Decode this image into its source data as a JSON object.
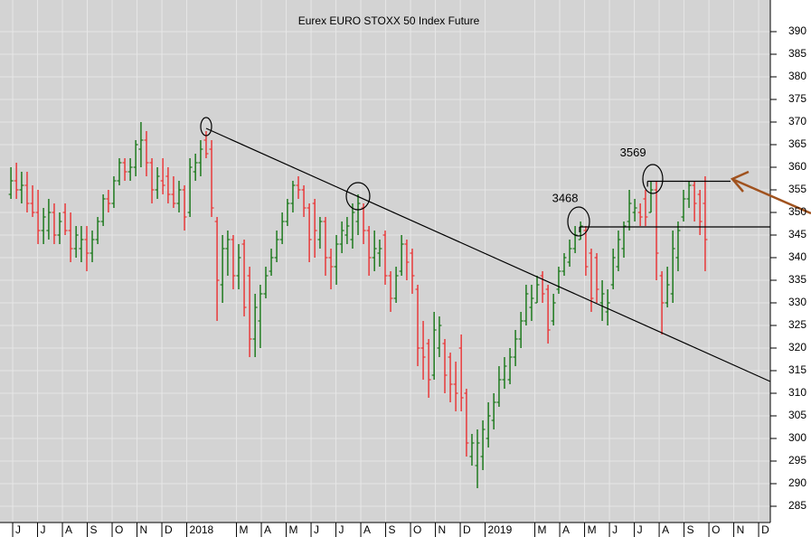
{
  "chart_data": {
    "type": "ohlc",
    "title": "Eurex EURO STOXX 50 Index Future",
    "up_color": "#1e7a1e",
    "down_color": "#e8393a",
    "grid": true,
    "xlim": [
      -0.51,
      30.47
    ],
    "ylim": [
      281.4,
      397
    ],
    "yticks": [
      285,
      290,
      295,
      300,
      305,
      310,
      315,
      320,
      325,
      330,
      335,
      340,
      345,
      350,
      355,
      360,
      365,
      370,
      375,
      380,
      385,
      390
    ],
    "xticks": [
      {
        "value": 0,
        "label": "J"
      },
      {
        "value": 1,
        "label": "J"
      },
      {
        "value": 2,
        "label": "A"
      },
      {
        "value": 3,
        "label": "S"
      },
      {
        "value": 4,
        "label": "O"
      },
      {
        "value": 5,
        "label": "N"
      },
      {
        "value": 6,
        "label": "D"
      },
      {
        "value": 7,
        "label": "2018"
      },
      {
        "value": 9,
        "label": "M"
      },
      {
        "value": 10,
        "label": "A"
      },
      {
        "value": 11,
        "label": "M"
      },
      {
        "value": 12,
        "label": "J"
      },
      {
        "value": 13,
        "label": "J"
      },
      {
        "value": 14,
        "label": "A"
      },
      {
        "value": 15,
        "label": "S"
      },
      {
        "value": 16,
        "label": "O"
      },
      {
        "value": 17,
        "label": "N"
      },
      {
        "value": 18,
        "label": "D"
      },
      {
        "value": 19,
        "label": "2019"
      },
      {
        "value": 21,
        "label": "M"
      },
      {
        "value": 22,
        "label": "A"
      },
      {
        "value": 23,
        "label": "M"
      },
      {
        "value": 24,
        "label": "J"
      },
      {
        "value": 25,
        "label": "J"
      },
      {
        "value": 26,
        "label": "A"
      },
      {
        "value": 27,
        "label": "S"
      },
      {
        "value": 28,
        "label": "O"
      },
      {
        "value": 29,
        "label": "N"
      },
      {
        "value": 30,
        "label": "D"
      }
    ],
    "levels": [
      {
        "value": 346.8,
        "label": "3468",
        "x_start": 22.8,
        "x_end": 30.47
      },
      {
        "value": 356.9,
        "label": "3569",
        "x_start": 25.53,
        "x_end": 28.87
      }
    ],
    "trendline": {
      "x": [
        7.78,
        30.47
      ],
      "values": [
        368.6,
        312.6
      ]
    },
    "bars": [
      {
        "x": -0.07,
        "open": 354,
        "high": 360,
        "low": 353,
        "close": 357
      },
      {
        "x": 0.15,
        "open": 357,
        "high": 361,
        "low": 353,
        "close": 355
      },
      {
        "x": 0.36,
        "open": 355,
        "high": 359,
        "low": 352,
        "close": 356
      },
      {
        "x": 0.58,
        "open": 356,
        "high": 359,
        "low": 350,
        "close": 352
      },
      {
        "x": 0.8,
        "open": 352,
        "high": 356,
        "low": 349,
        "close": 350
      },
      {
        "x": 1.02,
        "open": 350,
        "high": 355,
        "low": 343,
        "close": 346
      },
      {
        "x": 1.24,
        "open": 346,
        "high": 351,
        "low": 343,
        "close": 349
      },
      {
        "x": 1.45,
        "open": 346,
        "high": 353,
        "low": 344,
        "close": 350
      },
      {
        "x": 1.67,
        "open": 350,
        "high": 352,
        "low": 343,
        "close": 345
      },
      {
        "x": 1.89,
        "open": 345,
        "high": 350,
        "low": 343,
        "close": 348
      },
      {
        "x": 2.11,
        "open": 350,
        "high": 352,
        "low": 345,
        "close": 346
      },
      {
        "x": 2.33,
        "open": 346,
        "high": 350,
        "low": 339,
        "close": 342
      },
      {
        "x": 2.55,
        "open": 342,
        "high": 347,
        "low": 340,
        "close": 345
      },
      {
        "x": 2.76,
        "open": 342,
        "high": 347,
        "low": 339,
        "close": 344
      },
      {
        "x": 2.98,
        "open": 344,
        "high": 347,
        "low": 337,
        "close": 341
      },
      {
        "x": 3.2,
        "open": 341,
        "high": 346,
        "low": 339,
        "close": 344
      },
      {
        "x": 3.42,
        "open": 344,
        "high": 349,
        "low": 343,
        "close": 348
      },
      {
        "x": 3.64,
        "open": 348,
        "high": 354,
        "low": 347,
        "close": 353
      },
      {
        "x": 3.85,
        "open": 353,
        "high": 355,
        "low": 350,
        "close": 352
      },
      {
        "x": 4.07,
        "open": 352,
        "high": 358,
        "low": 351,
        "close": 357
      },
      {
        "x": 4.29,
        "open": 357,
        "high": 362,
        "low": 356,
        "close": 361
      },
      {
        "x": 4.51,
        "open": 361,
        "high": 362,
        "low": 357,
        "close": 359
      },
      {
        "x": 4.73,
        "open": 359,
        "high": 362,
        "low": 357,
        "close": 360
      },
      {
        "x": 4.95,
        "open": 360,
        "high": 366,
        "low": 358,
        "close": 365
      },
      {
        "x": 5.16,
        "open": 364,
        "high": 370,
        "low": 360,
        "close": 366
      },
      {
        "x": 5.38,
        "open": 366,
        "high": 368,
        "low": 358,
        "close": 361
      },
      {
        "x": 5.6,
        "open": 361,
        "high": 362,
        "low": 352,
        "close": 355
      },
      {
        "x": 5.82,
        "open": 355,
        "high": 360,
        "low": 353,
        "close": 358
      },
      {
        "x": 6.04,
        "open": 357,
        "high": 362,
        "low": 354,
        "close": 356
      },
      {
        "x": 6.25,
        "open": 358,
        "high": 360,
        "low": 352,
        "close": 354
      },
      {
        "x": 6.47,
        "open": 354,
        "high": 358,
        "low": 351,
        "close": 352
      },
      {
        "x": 6.69,
        "open": 352,
        "high": 357,
        "low": 350,
        "close": 355
      },
      {
        "x": 6.91,
        "open": 355,
        "high": 356,
        "low": 346,
        "close": 349
      },
      {
        "x": 7.13,
        "open": 350,
        "high": 362,
        "low": 349,
        "close": 360
      },
      {
        "x": 7.35,
        "open": 359,
        "high": 363,
        "low": 357,
        "close": 361
      },
      {
        "x": 7.56,
        "open": 361,
        "high": 366,
        "low": 358,
        "close": 364
      },
      {
        "x": 7.78,
        "open": 366,
        "high": 368,
        "low": 362,
        "close": 363
      },
      {
        "x": 8.0,
        "open": 364,
        "high": 366,
        "low": 349,
        "close": 351
      },
      {
        "x": 8.22,
        "open": 348,
        "high": 349,
        "low": 326,
        "close": 335
      },
      {
        "x": 8.44,
        "open": 334,
        "high": 345,
        "low": 330,
        "close": 342
      },
      {
        "x": 8.65,
        "open": 342,
        "high": 346,
        "low": 336,
        "close": 344
      },
      {
        "x": 8.87,
        "open": 344,
        "high": 345,
        "low": 333,
        "close": 336
      },
      {
        "x": 9.09,
        "open": 336,
        "high": 343,
        "low": 333,
        "close": 340
      },
      {
        "x": 9.31,
        "open": 343,
        "high": 344,
        "low": 327,
        "close": 329
      },
      {
        "x": 9.53,
        "open": 336,
        "high": 338,
        "low": 318,
        "close": 322
      },
      {
        "x": 9.75,
        "open": 322,
        "high": 332,
        "low": 318,
        "close": 329
      },
      {
        "x": 9.96,
        "open": 326,
        "high": 334,
        "low": 320,
        "close": 332
      },
      {
        "x": 10.18,
        "open": 332,
        "high": 338,
        "low": 331,
        "close": 336
      },
      {
        "x": 10.4,
        "open": 337,
        "high": 342,
        "low": 336,
        "close": 340
      },
      {
        "x": 10.62,
        "open": 340,
        "high": 346,
        "low": 339,
        "close": 344
      },
      {
        "x": 10.84,
        "open": 344,
        "high": 350,
        "low": 343,
        "close": 348
      },
      {
        "x": 11.05,
        "open": 348,
        "high": 353,
        "low": 347,
        "close": 352
      },
      {
        "x": 11.27,
        "open": 352,
        "high": 357,
        "low": 350,
        "close": 356
      },
      {
        "x": 11.49,
        "open": 356,
        "high": 358,
        "low": 353,
        "close": 355
      },
      {
        "x": 11.71,
        "open": 355,
        "high": 356,
        "low": 349,
        "close": 351
      },
      {
        "x": 11.93,
        "open": 351,
        "high": 352,
        "low": 339,
        "close": 344
      },
      {
        "x": 12.15,
        "open": 352,
        "high": 353,
        "low": 340,
        "close": 346
      },
      {
        "x": 12.36,
        "open": 344,
        "high": 349,
        "low": 342,
        "close": 348
      },
      {
        "x": 12.58,
        "open": 348,
        "high": 349,
        "low": 336,
        "close": 340
      },
      {
        "x": 12.8,
        "open": 340,
        "high": 342,
        "low": 333,
        "close": 338
      },
      {
        "x": 13.02,
        "open": 338,
        "high": 345,
        "low": 334,
        "close": 343
      },
      {
        "x": 13.24,
        "open": 343,
        "high": 348,
        "low": 341,
        "close": 346
      },
      {
        "x": 13.45,
        "open": 345,
        "high": 349,
        "low": 343,
        "close": 347
      },
      {
        "x": 13.67,
        "open": 344,
        "high": 352,
        "low": 342,
        "close": 350
      },
      {
        "x": 13.89,
        "open": 348,
        "high": 354,
        "low": 345,
        "close": 352
      },
      {
        "x": 14.11,
        "open": 351,
        "high": 352,
        "low": 343,
        "close": 346
      },
      {
        "x": 14.33,
        "open": 346,
        "high": 347,
        "low": 336,
        "close": 340
      },
      {
        "x": 14.55,
        "open": 340,
        "high": 346,
        "low": 337,
        "close": 342
      },
      {
        "x": 14.76,
        "open": 341,
        "high": 344,
        "low": 338,
        "close": 342
      },
      {
        "x": 14.98,
        "open": 345,
        "high": 346,
        "low": 334,
        "close": 336
      },
      {
        "x": 15.2,
        "open": 336,
        "high": 337,
        "low": 328,
        "close": 331
      },
      {
        "x": 15.42,
        "open": 331,
        "high": 338,
        "low": 330,
        "close": 336
      },
      {
        "x": 15.64,
        "open": 337,
        "high": 345,
        "low": 336,
        "close": 343
      },
      {
        "x": 15.85,
        "open": 343,
        "high": 344,
        "low": 335,
        "close": 339
      },
      {
        "x": 16.07,
        "open": 341,
        "high": 342,
        "low": 332,
        "close": 336
      },
      {
        "x": 16.29,
        "open": 333,
        "high": 334,
        "low": 316,
        "close": 320
      },
      {
        "x": 16.51,
        "open": 320,
        "high": 326,
        "low": 313,
        "close": 318
      },
      {
        "x": 16.73,
        "open": 321,
        "high": 322,
        "low": 309,
        "close": 313
      },
      {
        "x": 16.95,
        "open": 314,
        "high": 328,
        "low": 313,
        "close": 324
      },
      {
        "x": 17.16,
        "open": 320,
        "high": 327,
        "low": 318,
        "close": 325
      },
      {
        "x": 17.38,
        "open": 321,
        "high": 322,
        "low": 310,
        "close": 314
      },
      {
        "x": 17.6,
        "open": 318,
        "high": 319,
        "low": 308,
        "close": 312
      },
      {
        "x": 17.82,
        "open": 312,
        "high": 317,
        "low": 306,
        "close": 310
      },
      {
        "x": 18.04,
        "open": 320,
        "high": 323,
        "low": 306,
        "close": 309
      },
      {
        "x": 18.25,
        "open": 310,
        "high": 311,
        "low": 296,
        "close": 299
      },
      {
        "x": 18.47,
        "open": 296,
        "high": 301,
        "low": 294,
        "close": 299
      },
      {
        "x": 18.69,
        "open": 294,
        "high": 302,
        "low": 289,
        "close": 299
      },
      {
        "x": 18.91,
        "open": 296,
        "high": 304,
        "low": 293,
        "close": 302
      },
      {
        "x": 19.13,
        "open": 300,
        "high": 308,
        "low": 298,
        "close": 305
      },
      {
        "x": 19.35,
        "open": 304,
        "high": 310,
        "low": 302,
        "close": 308
      },
      {
        "x": 19.56,
        "open": 308,
        "high": 316,
        "low": 307,
        "close": 313
      },
      {
        "x": 19.78,
        "open": 313,
        "high": 318,
        "low": 311,
        "close": 316
      },
      {
        "x": 20.0,
        "open": 313,
        "high": 320,
        "low": 312,
        "close": 318
      },
      {
        "x": 20.22,
        "open": 318,
        "high": 324,
        "low": 316,
        "close": 322
      },
      {
        "x": 20.44,
        "open": 322,
        "high": 328,
        "low": 320,
        "close": 326
      },
      {
        "x": 20.65,
        "open": 326,
        "high": 334,
        "low": 325,
        "close": 332
      },
      {
        "x": 20.87,
        "open": 329,
        "high": 334,
        "low": 326,
        "close": 331
      },
      {
        "x": 21.09,
        "open": 330,
        "high": 336,
        "low": 330,
        "close": 334
      },
      {
        "x": 21.31,
        "open": 336,
        "high": 337,
        "low": 330,
        "close": 332
      },
      {
        "x": 21.53,
        "open": 333,
        "high": 334,
        "low": 321,
        "close": 324
      },
      {
        "x": 21.75,
        "open": 326,
        "high": 332,
        "low": 325,
        "close": 330
      },
      {
        "x": 21.96,
        "open": 333,
        "high": 338,
        "low": 332,
        "close": 337
      },
      {
        "x": 22.18,
        "open": 337,
        "high": 341,
        "low": 336,
        "close": 340
      },
      {
        "x": 22.4,
        "open": 339,
        "high": 344,
        "low": 338,
        "close": 342
      },
      {
        "x": 22.62,
        "open": 342,
        "high": 347,
        "low": 341,
        "close": 345
      },
      {
        "x": 22.84,
        "open": 344,
        "high": 348,
        "low": 344,
        "close": 347
      },
      {
        "x": 23.05,
        "open": 346,
        "high": 347,
        "low": 336,
        "close": 338
      },
      {
        "x": 23.27,
        "open": 341,
        "high": 342,
        "low": 328,
        "close": 331
      },
      {
        "x": 23.49,
        "open": 340,
        "high": 341,
        "low": 330,
        "close": 333
      },
      {
        "x": 23.71,
        "open": 330,
        "high": 335,
        "low": 326,
        "close": 332
      },
      {
        "x": 23.93,
        "open": 328,
        "high": 333,
        "low": 325,
        "close": 330
      },
      {
        "x": 24.15,
        "open": 334,
        "high": 342,
        "low": 333,
        "close": 340
      },
      {
        "x": 24.36,
        "open": 338,
        "high": 346,
        "low": 337,
        "close": 344
      },
      {
        "x": 24.58,
        "open": 342,
        "high": 348,
        "low": 340,
        "close": 347
      },
      {
        "x": 24.8,
        "open": 348,
        "high": 355,
        "low": 346,
        "close": 352
      },
      {
        "x": 25.02,
        "open": 350,
        "high": 353,
        "low": 348,
        "close": 351
      },
      {
        "x": 25.24,
        "open": 350,
        "high": 352,
        "low": 347,
        "close": 349
      },
      {
        "x": 25.45,
        "open": 353,
        "high": 355,
        "low": 347,
        "close": 349
      },
      {
        "x": 25.67,
        "open": 350,
        "high": 357,
        "low": 350,
        "close": 355
      },
      {
        "x": 25.89,
        "open": 355,
        "high": 357,
        "low": 335,
        "close": 341
      },
      {
        "x": 26.11,
        "open": 336,
        "high": 337,
        "low": 323,
        "close": 330
      },
      {
        "x": 26.33,
        "open": 330,
        "high": 338,
        "low": 329,
        "close": 334
      },
      {
        "x": 26.55,
        "open": 332,
        "high": 346,
        "low": 330,
        "close": 342
      },
      {
        "x": 26.76,
        "open": 340,
        "high": 348,
        "low": 337,
        "close": 346
      },
      {
        "x": 26.98,
        "open": 349,
        "high": 355,
        "low": 348,
        "close": 353
      },
      {
        "x": 27.2,
        "open": 353,
        "high": 357,
        "low": 351,
        "close": 356
      },
      {
        "x": 27.42,
        "open": 356,
        "high": 357,
        "low": 348,
        "close": 352
      },
      {
        "x": 27.64,
        "open": 354,
        "high": 355,
        "low": 345,
        "close": 348
      },
      {
        "x": 27.85,
        "open": 352,
        "high": 358,
        "low": 337,
        "close": 344
      }
    ]
  }
}
